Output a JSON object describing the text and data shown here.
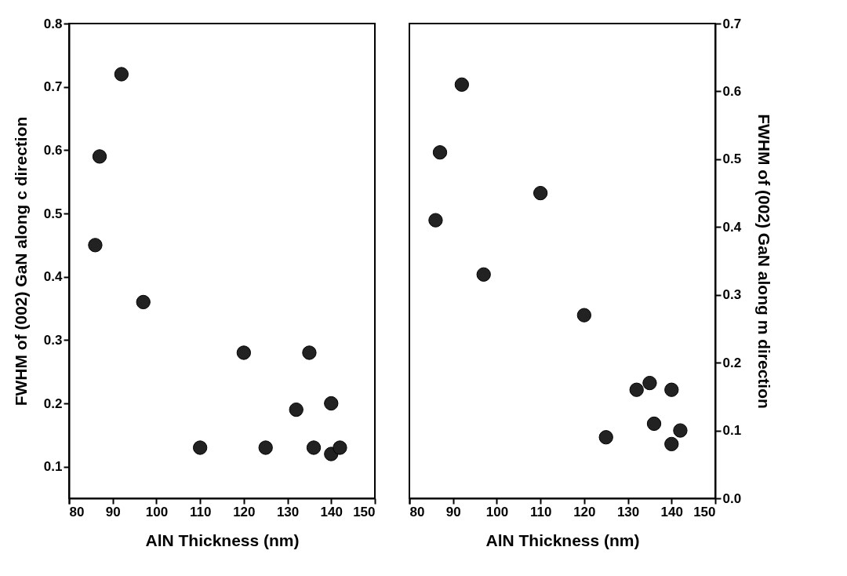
{
  "chart_data": [
    {
      "type": "scatter",
      "xlabel": "AlN Thickness (nm)",
      "ylabel": "FWHM of (002) GaN along c direction",
      "xlim": [
        80,
        150
      ],
      "xticks": [
        80,
        90,
        100,
        110,
        120,
        130,
        140,
        150
      ],
      "ylim": [
        0.05,
        0.8
      ],
      "yticks": [
        0.1,
        0.2,
        0.3,
        0.4,
        0.5,
        0.6,
        0.7,
        0.8
      ],
      "grid": false,
      "marker": "circle",
      "x": [
        86,
        87,
        92,
        97,
        110,
        120,
        125,
        132,
        135,
        136,
        140,
        140,
        142
      ],
      "series": [
        {
          "color": "#222222",
          "values": [
            0.45,
            0.59,
            0.72,
            0.36,
            0.13,
            0.28,
            0.13,
            0.19,
            0.28,
            0.13,
            0.12,
            0.2,
            0.13
          ]
        }
      ]
    },
    {
      "type": "scatter",
      "xlabel": "AlN Thickness (nm)",
      "y2label": "FWHM of (002) GaN along m direction",
      "xlim": [
        80,
        150
      ],
      "xticks": [
        80,
        90,
        100,
        110,
        120,
        130,
        140,
        150
      ],
      "y2lim": [
        0,
        0.7
      ],
      "y2ticks": [
        {
          "value": 0,
          "label": "0.0"
        },
        0.1,
        0.2,
        0.3,
        0.4,
        0.5,
        0.6,
        0.7
      ],
      "grid": false,
      "marker": "circle",
      "x": [
        86,
        87,
        92,
        97,
        110,
        120,
        125,
        132,
        135,
        136,
        140,
        140,
        142
      ],
      "series": [
        {
          "axis": "y2",
          "color": "#222222",
          "values": [
            0.41,
            0.51,
            0.61,
            0.33,
            0.45,
            0.27,
            0.09,
            0.16,
            0.17,
            0.11,
            0.08,
            0.16,
            0.1
          ]
        }
      ]
    }
  ]
}
